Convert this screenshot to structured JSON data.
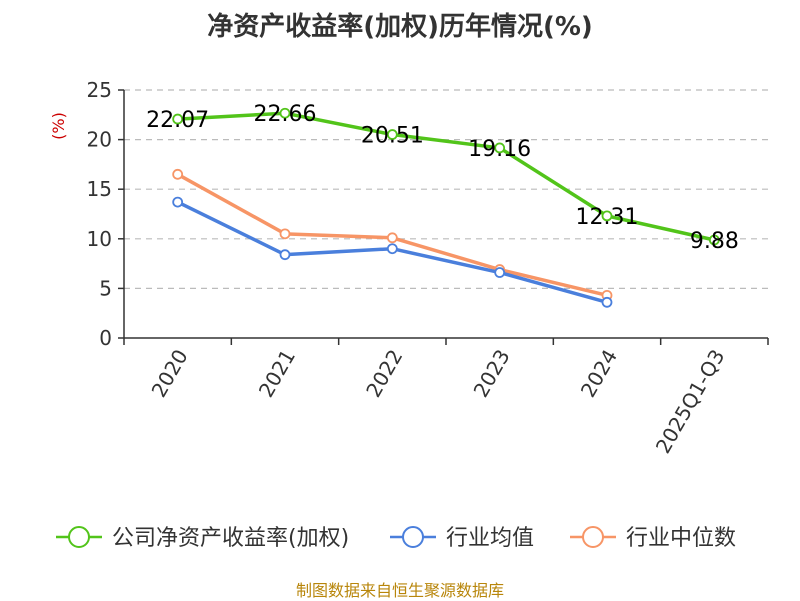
{
  "chart_data": {
    "type": "line",
    "title": "净资产收益率(加权)历年情况(%)",
    "ylabel": "(%)",
    "xlabel": "",
    "ylim": [
      0,
      25
    ],
    "yticks": [
      0,
      5,
      10,
      15,
      20,
      25
    ],
    "grid": true,
    "categories": [
      "2020",
      "2021",
      "2022",
      "2023",
      "2024",
      "2025Q1-Q3"
    ],
    "series": [
      {
        "name": "公司净资产收益率(加权)",
        "color": "#52c41a",
        "values": [
          22.07,
          22.66,
          20.51,
          19.16,
          12.31,
          9.88
        ],
        "labels": [
          "22.07",
          "22.66",
          "20.51",
          "19.16",
          "12.31",
          "9.88"
        ]
      },
      {
        "name": "行业均值",
        "color": "#4a7fdc",
        "values": [
          13.7,
          8.4,
          9.0,
          6.6,
          3.6,
          null
        ]
      },
      {
        "name": "行业中位数",
        "color": "#f79566",
        "values": [
          16.5,
          10.5,
          10.1,
          6.9,
          4.3,
          null
        ]
      }
    ],
    "legend_position": "bottom"
  },
  "source_text": "制图数据来自恒生聚源数据库",
  "colors": {
    "axis": "#333333",
    "grid": "#bbbbbb",
    "ylabel": "#cc0000"
  }
}
